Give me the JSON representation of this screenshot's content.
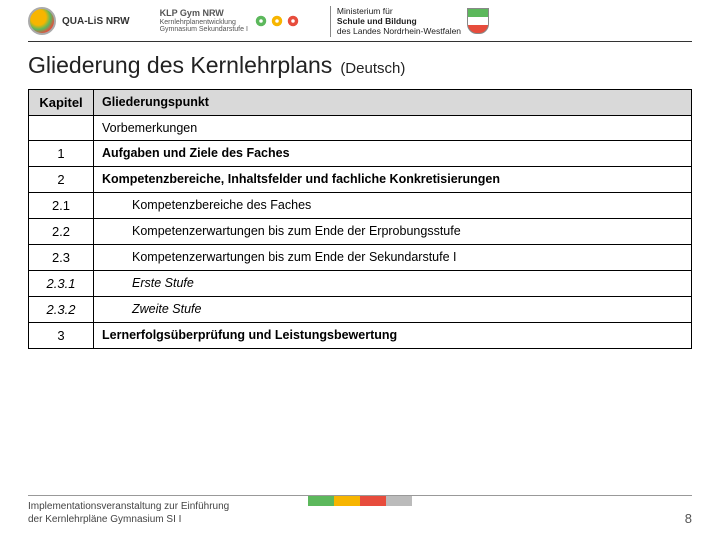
{
  "header": {
    "qualis": "QUA-LiS NRW",
    "klp_line1": "KLP Gym NRW",
    "klp_line2": "Kernlehrplanentwicklung",
    "klp_line3": "Gymnasium Sekundarstufe I",
    "gear_colors": [
      "#5cb85c",
      "#f7b500",
      "#e74c3c"
    ],
    "ministerium_l1": "Ministerium für",
    "ministerium_l2": "Schule und Bildung",
    "ministerium_l3": "des Landes Nordrhein-Westfalen"
  },
  "title": {
    "main": "Gliederung des Kernlehrplans",
    "sub": "(Deutsch)"
  },
  "table": {
    "head": {
      "col1": "Kapitel",
      "col2": "Gliederungspunkt"
    },
    "rows": [
      {
        "kap": "",
        "text": "Vorbemerkungen",
        "bold": false,
        "italic": false,
        "indent": false
      },
      {
        "kap": "1",
        "text": "Aufgaben und Ziele des Faches",
        "bold": true,
        "italic": false,
        "indent": false
      },
      {
        "kap": "2",
        "text": "Kompetenzbereiche, Inhaltsfelder und fachliche Konkretisierungen",
        "bold": true,
        "italic": false,
        "indent": false
      },
      {
        "kap": "2.1",
        "text": "Kompetenzbereiche des Faches",
        "bold": false,
        "italic": false,
        "indent": true
      },
      {
        "kap": "2.2",
        "text": "Kompetenzerwartungen bis zum Ende der Erprobungsstufe",
        "bold": false,
        "italic": false,
        "indent": true
      },
      {
        "kap": "2.3",
        "text": "Kompetenzerwartungen bis zum Ende der Sekundarstufe I",
        "bold": false,
        "italic": false,
        "indent": true
      },
      {
        "kap": "2.3.1",
        "text": "Erste Stufe",
        "bold": false,
        "italic": true,
        "indent": true
      },
      {
        "kap": "2.3.2",
        "text": "Zweite Stufe",
        "bold": false,
        "italic": true,
        "indent": true
      },
      {
        "kap": "3",
        "text": "Lernerfolgsüberprüfung und Leistungsbewertung",
        "bold": true,
        "italic": false,
        "indent": false
      }
    ]
  },
  "footer": {
    "text_l1": "Implementationsveranstaltung zur Einführung",
    "text_l2": "der Kernlehrpläne Gymnasium SI I",
    "page": "8",
    "bar_colors": [
      "#5cb85c",
      "#f7b500",
      "#e74c3c",
      "#bbbbbb"
    ]
  }
}
